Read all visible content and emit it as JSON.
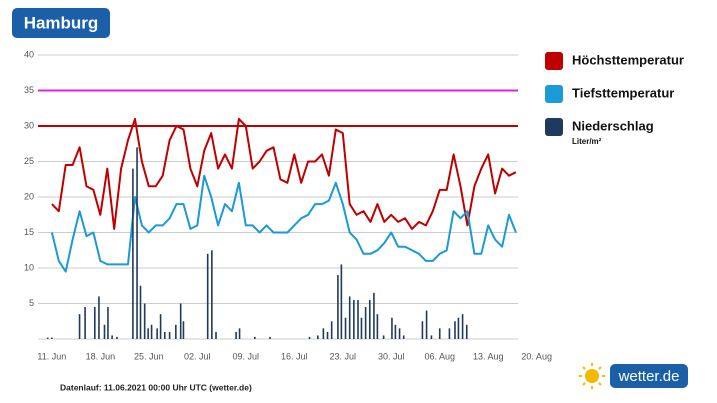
{
  "chart_data": {
    "type": "line",
    "title": "Hamburg",
    "footer": "Datenlauf: 11.06.2021 00:00 Uhr UTC (wetter.de)",
    "logo": "wetter.de",
    "xlim": [
      -2,
      67.3
    ],
    "xticks": [
      {
        "value": 0,
        "label": "11. Jun"
      },
      {
        "value": 7,
        "label": "18. Jun"
      },
      {
        "value": 14,
        "label": "25. Jun"
      },
      {
        "value": 21,
        "label": "02. Jul"
      },
      {
        "value": 28,
        "label": "09. Jul"
      },
      {
        "value": 35,
        "label": "16. Jul"
      },
      {
        "value": 42,
        "label": "23. Jul"
      },
      {
        "value": 49,
        "label": "30. Jul"
      },
      {
        "value": 56,
        "label": "06. Aug"
      },
      {
        "value": 63,
        "label": "13. Aug"
      },
      {
        "value": 70,
        "label": "20. Aug"
      }
    ],
    "ylim": [
      0,
      40
    ],
    "yticks": [
      5,
      10,
      15,
      20,
      25,
      30,
      35,
      40
    ],
    "grid": true,
    "reference_lines": [
      {
        "value": 30,
        "color": "#c00000"
      },
      {
        "value": 35,
        "color": "#e020e0"
      }
    ],
    "series": [
      {
        "name": "Höchsttemperatur",
        "color": "#c00000",
        "type": "line",
        "x": [
          0,
          1,
          2,
          3,
          4,
          5,
          6,
          7,
          8,
          9,
          10,
          11,
          12,
          13,
          14,
          15,
          16,
          17,
          18,
          19,
          20,
          21,
          22,
          23,
          24,
          25,
          26,
          27,
          28,
          29,
          30,
          31,
          32,
          33,
          34,
          35,
          36,
          37,
          38,
          39,
          40,
          41,
          42,
          43,
          44,
          45,
          46,
          47,
          48,
          49,
          50,
          51,
          52,
          53,
          54,
          55,
          56,
          57,
          58,
          59,
          60,
          61,
          62,
          63,
          64,
          65,
          66,
          67
        ],
        "values": [
          19,
          18,
          24.5,
          24.5,
          27,
          21.5,
          21,
          17.5,
          24,
          15.5,
          24,
          28,
          31,
          25,
          21.5,
          21.5,
          23,
          28,
          30,
          29.5,
          24,
          21.5,
          26.5,
          29,
          24,
          26,
          24,
          31,
          30,
          24,
          25,
          26.5,
          27,
          22.5,
          22,
          26,
          22,
          25,
          25,
          26,
          23,
          29.5,
          29,
          19,
          17.5,
          18,
          16.5,
          19,
          16.5,
          17.5,
          16.5,
          17,
          15.5,
          16.5,
          16,
          18,
          21,
          21,
          26,
          21.5,
          16,
          21.5,
          24,
          26,
          20.5,
          24,
          23,
          23.5
        ]
      },
      {
        "name": "Tiefsttemperatur",
        "color": "#1a9ad6",
        "type": "line",
        "x": [
          0,
          1,
          2,
          3,
          4,
          5,
          6,
          7,
          8,
          9,
          10,
          11,
          12,
          13,
          14,
          15,
          16,
          17,
          18,
          19,
          20,
          21,
          22,
          23,
          24,
          25,
          26,
          27,
          28,
          29,
          30,
          31,
          32,
          33,
          34,
          35,
          36,
          37,
          38,
          39,
          40,
          41,
          42,
          43,
          44,
          45,
          46,
          47,
          48,
          49,
          50,
          51,
          52,
          53,
          54,
          55,
          56,
          57,
          58,
          59,
          60,
          61,
          62,
          63,
          64,
          65,
          66,
          67
        ],
        "values": [
          15,
          11,
          9.5,
          14,
          18,
          14.5,
          15,
          11,
          10.5,
          10.5,
          10.5,
          10.5,
          20,
          16,
          15,
          16,
          16,
          17,
          19,
          19,
          15.5,
          16,
          23,
          20,
          16,
          19,
          18,
          22,
          16,
          16,
          15,
          16,
          15,
          15,
          15,
          16,
          17,
          17.5,
          19,
          19,
          19.5,
          22,
          19,
          15,
          14,
          12,
          12,
          12.5,
          13.5,
          15,
          13,
          13,
          12.5,
          12,
          11,
          11,
          12,
          12.5,
          18,
          17,
          18,
          12,
          12,
          16,
          14,
          13,
          17.5,
          15
        ]
      },
      {
        "name": "Niederschlag",
        "unit": "Liter/m²",
        "color": "#1f3a5f",
        "type": "bar",
        "x": [
          -0.6,
          0,
          4.0,
          4.8,
          6.2,
          6.8,
          7.6,
          8.1,
          8.7,
          9.4,
          11.7,
          12.3,
          12.8,
          13.4,
          13.9,
          14.4,
          15.2,
          15.7,
          16.3,
          17.0,
          17.9,
          18.6,
          19.0,
          22.5,
          23.1,
          23.7,
          26.6,
          27.1,
          29.3,
          31.5,
          37.2,
          38.4,
          39.2,
          39.8,
          40.4,
          41.3,
          41.8,
          42.4,
          43.0,
          43.6,
          44.2,
          44.7,
          45.3,
          45.9,
          46.5,
          47.0,
          47.9,
          49.1,
          49.6,
          50.2,
          50.8,
          53.5,
          54.1,
          54.8,
          56.0,
          57.4,
          58.2,
          58.7,
          59.3,
          59.9
        ],
        "values": [
          0.2,
          0.2,
          3.5,
          4.5,
          4.5,
          6,
          2,
          4.5,
          0.5,
          0.3,
          24,
          27,
          7.5,
          5,
          1.5,
          2,
          1.5,
          3.5,
          1,
          1,
          2,
          5,
          2.5,
          12,
          12.5,
          1,
          1,
          1.5,
          0.3,
          0.3,
          0.3,
          0.5,
          1.5,
          1,
          2.5,
          9,
          10.5,
          3,
          6,
          5.5,
          5.5,
          3,
          4.5,
          5.5,
          6.5,
          3.5,
          0.5,
          3,
          2,
          1.5,
          0.5,
          2.5,
          4,
          0.5,
          1.5,
          1.5,
          2.5,
          3,
          3.5,
          2
        ]
      }
    ]
  }
}
